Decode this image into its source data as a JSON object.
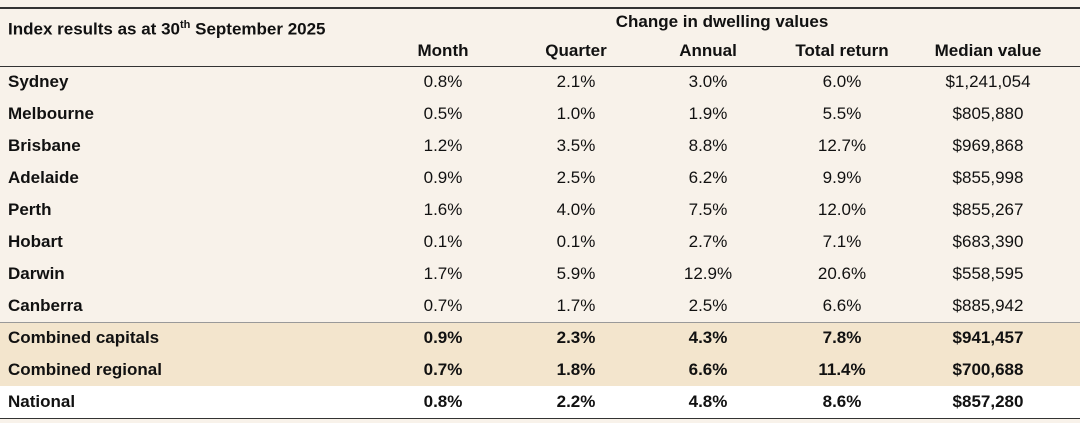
{
  "header": {
    "title_start": "Index results as at 30",
    "title_sup": "th",
    "title_end": "September 2025",
    "group_label": "Change in dwelling values"
  },
  "table": {
    "columns": [
      "Month",
      "Quarter",
      "Annual",
      "Total return",
      "Median value"
    ],
    "rows": [
      [
        "Sydney",
        "0.8%",
        "2.1%",
        "3.0%",
        "6.0%",
        "$1,241,054"
      ],
      [
        "Melbourne",
        "0.5%",
        "1.0%",
        "1.9%",
        "5.5%",
        "$805,880"
      ],
      [
        "Brisbane",
        "1.2%",
        "3.5%",
        "8.8%",
        "12.7%",
        "$969,868"
      ],
      [
        "Adelaide",
        "0.9%",
        "2.5%",
        "6.2%",
        "9.9%",
        "$855,998"
      ],
      [
        "Perth",
        "1.6%",
        "4.0%",
        "7.5%",
        "12.0%",
        "$855,267"
      ],
      [
        "Hobart",
        "0.1%",
        "0.1%",
        "2.7%",
        "7.1%",
        "$683,390"
      ],
      [
        "Darwin",
        "1.7%",
        "5.9%",
        "12.9%",
        "20.6%",
        "$558,595"
      ],
      [
        "Canberra",
        "0.7%",
        "1.7%",
        "2.5%",
        "6.6%",
        "$885,942"
      ]
    ],
    "summary_rows": [
      [
        "Combined capitals",
        "0.9%",
        "2.3%",
        "4.3%",
        "7.8%",
        "$941,457"
      ],
      [
        "Combined regional",
        "0.7%",
        "1.8%",
        "6.6%",
        "11.4%",
        "$700,688"
      ],
      [
        "National",
        "0.8%",
        "2.2%",
        "4.8%",
        "8.6%",
        "$857,280"
      ]
    ]
  }
}
